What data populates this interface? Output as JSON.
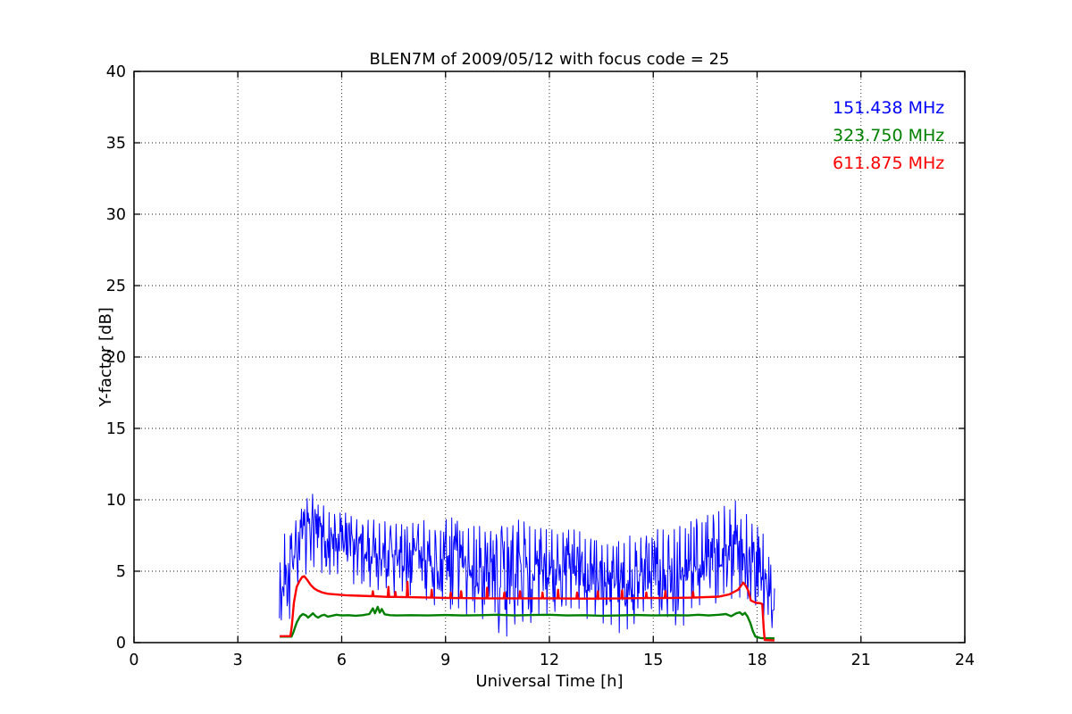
{
  "figure": {
    "background": "#ffffff"
  },
  "chart_data": {
    "type": "line",
    "title": "BLEN7M of 2009/05/12 with focus code = 25",
    "xlabel": "Universal Time [h]",
    "ylabel": "Y-factor [dB]",
    "xlim": [
      0,
      24
    ],
    "ylim": [
      0,
      40
    ],
    "xticks": [
      0,
      3,
      6,
      9,
      12,
      15,
      18,
      21,
      24
    ],
    "yticks": [
      0,
      5,
      10,
      15,
      20,
      25,
      30,
      35,
      40
    ],
    "grid": "dotted",
    "legend_position": "top-right",
    "series": [
      {
        "name": "151.438 MHz",
        "color": "#0000ff",
        "style": "noisy",
        "linewidth": 1.0,
        "envelope_format": "[t_start, t_end, min_dB, max_dB]",
        "envelope": [
          [
            4.2,
            4.35,
            1.4,
            6.5
          ],
          [
            4.35,
            4.55,
            1.4,
            7.8
          ],
          [
            4.55,
            4.75,
            4.0,
            8.8
          ],
          [
            4.75,
            5.0,
            4.8,
            9.6
          ],
          [
            5.0,
            5.3,
            5.0,
            10.4
          ],
          [
            5.3,
            5.6,
            4.8,
            9.8
          ],
          [
            5.6,
            5.9,
            4.5,
            9.3
          ],
          [
            5.9,
            6.2,
            4.2,
            9.2
          ],
          [
            6.2,
            6.6,
            4.0,
            9.0
          ],
          [
            6.6,
            7.0,
            3.8,
            8.6
          ],
          [
            7.0,
            7.5,
            3.5,
            8.5
          ],
          [
            7.5,
            8.0,
            3.2,
            8.4
          ],
          [
            8.0,
            8.5,
            3.0,
            8.6
          ],
          [
            8.5,
            9.0,
            2.6,
            8.0
          ],
          [
            9.0,
            9.5,
            2.2,
            9.0
          ],
          [
            9.5,
            10.0,
            1.6,
            8.2
          ],
          [
            10.0,
            10.5,
            1.5,
            8.0
          ],
          [
            10.5,
            11.0,
            0.4,
            8.2
          ],
          [
            11.0,
            11.5,
            1.2,
            8.6
          ],
          [
            11.5,
            12.0,
            1.6,
            8.0
          ],
          [
            12.0,
            12.5,
            1.8,
            8.0
          ],
          [
            12.5,
            13.0,
            2.0,
            8.2
          ],
          [
            13.0,
            13.5,
            1.6,
            7.5
          ],
          [
            13.5,
            14.0,
            1.2,
            7.2
          ],
          [
            14.0,
            14.5,
            0.4,
            7.5
          ],
          [
            14.5,
            15.0,
            2.0,
            7.6
          ],
          [
            15.0,
            15.5,
            1.6,
            8.0
          ],
          [
            15.5,
            16.0,
            1.2,
            8.4
          ],
          [
            16.0,
            16.5,
            2.4,
            8.8
          ],
          [
            16.5,
            17.0,
            2.2,
            9.2
          ],
          [
            17.0,
            17.3,
            3.0,
            9.6
          ],
          [
            17.3,
            17.5,
            3.5,
            10.0
          ],
          [
            17.5,
            17.8,
            3.0,
            9.0
          ],
          [
            17.8,
            18.1,
            2.4,
            8.4
          ],
          [
            18.1,
            18.3,
            1.6,
            7.6
          ],
          [
            18.3,
            18.45,
            0.8,
            6.0
          ],
          [
            18.45,
            18.52,
            0.4,
            4.0
          ]
        ]
      },
      {
        "name": "323.750 MHz",
        "color": "#008000",
        "style": "line",
        "linewidth": 2.4,
        "points_format": "[t_hours, dB]",
        "points": [
          [
            4.21,
            0.42
          ],
          [
            4.55,
            0.42
          ],
          [
            4.6,
            0.7
          ],
          [
            4.7,
            1.4
          ],
          [
            4.8,
            1.85
          ],
          [
            4.88,
            2.0
          ],
          [
            4.97,
            1.9
          ],
          [
            5.03,
            1.75
          ],
          [
            5.1,
            1.9
          ],
          [
            5.17,
            2.05
          ],
          [
            5.25,
            1.85
          ],
          [
            5.32,
            1.75
          ],
          [
            5.42,
            1.9
          ],
          [
            5.5,
            1.95
          ],
          [
            5.6,
            1.82
          ],
          [
            5.72,
            1.88
          ],
          [
            5.85,
            1.95
          ],
          [
            6.0,
            1.9
          ],
          [
            6.2,
            1.92
          ],
          [
            6.4,
            1.88
          ],
          [
            6.6,
            1.92
          ],
          [
            6.8,
            2.0
          ],
          [
            6.9,
            2.4
          ],
          [
            6.96,
            2.05
          ],
          [
            7.04,
            2.5
          ],
          [
            7.1,
            2.1
          ],
          [
            7.16,
            2.35
          ],
          [
            7.24,
            1.98
          ],
          [
            7.4,
            1.92
          ],
          [
            7.6,
            1.9
          ],
          [
            8.0,
            1.92
          ],
          [
            8.5,
            1.9
          ],
          [
            9.0,
            1.93
          ],
          [
            9.5,
            1.9
          ],
          [
            10.0,
            1.92
          ],
          [
            10.5,
            1.95
          ],
          [
            11.0,
            1.9
          ],
          [
            11.5,
            1.93
          ],
          [
            12.0,
            1.95
          ],
          [
            12.5,
            1.9
          ],
          [
            13.0,
            1.92
          ],
          [
            13.5,
            1.88
          ],
          [
            14.0,
            1.9
          ],
          [
            14.5,
            1.93
          ],
          [
            15.0,
            1.9
          ],
          [
            15.5,
            1.92
          ],
          [
            16.0,
            1.9
          ],
          [
            16.3,
            1.95
          ],
          [
            16.6,
            1.9
          ],
          [
            16.9,
            1.95
          ],
          [
            17.1,
            2.0
          ],
          [
            17.25,
            1.85
          ],
          [
            17.4,
            2.05
          ],
          [
            17.5,
            2.12
          ],
          [
            17.58,
            1.95
          ],
          [
            17.65,
            2.08
          ],
          [
            17.72,
            1.85
          ],
          [
            17.8,
            1.4
          ],
          [
            17.88,
            0.8
          ],
          [
            17.95,
            0.42
          ],
          [
            18.1,
            0.32
          ],
          [
            18.5,
            0.3
          ]
        ]
      },
      {
        "name": "611.875 MHz",
        "color": "#ff0000",
        "style": "line",
        "linewidth": 2.4,
        "points_format": "[t_hours, dB]",
        "points": [
          [
            4.21,
            0.45
          ],
          [
            4.52,
            0.45
          ],
          [
            4.56,
            1.2
          ],
          [
            4.62,
            2.8
          ],
          [
            4.7,
            3.9
          ],
          [
            4.78,
            4.3
          ],
          [
            4.86,
            4.6
          ],
          [
            4.92,
            4.65
          ],
          [
            5.0,
            4.4
          ],
          [
            5.1,
            4.05
          ],
          [
            5.2,
            3.8
          ],
          [
            5.3,
            3.65
          ],
          [
            5.45,
            3.5
          ],
          [
            5.6,
            3.42
          ],
          [
            5.8,
            3.38
          ],
          [
            6.1,
            3.32
          ],
          [
            6.5,
            3.28
          ],
          [
            6.88,
            3.25
          ],
          [
            6.9,
            3.6
          ],
          [
            6.92,
            3.25
          ],
          [
            7.33,
            3.2
          ],
          [
            7.35,
            3.9
          ],
          [
            7.37,
            3.2
          ],
          [
            7.53,
            3.2
          ],
          [
            7.55,
            3.55
          ],
          [
            7.57,
            3.2
          ],
          [
            7.88,
            3.18
          ],
          [
            7.9,
            4.25
          ],
          [
            7.92,
            3.18
          ],
          [
            8.58,
            3.15
          ],
          [
            8.6,
            3.7
          ],
          [
            8.62,
            3.15
          ],
          [
            9.13,
            3.12
          ],
          [
            9.15,
            3.5
          ],
          [
            9.17,
            3.12
          ],
          [
            9.43,
            3.12
          ],
          [
            9.45,
            3.6
          ],
          [
            9.47,
            3.12
          ],
          [
            10.18,
            3.1
          ],
          [
            10.2,
            3.85
          ],
          [
            10.22,
            3.1
          ],
          [
            10.68,
            3.1
          ],
          [
            10.7,
            3.5
          ],
          [
            10.72,
            3.1
          ],
          [
            11.13,
            3.1
          ],
          [
            11.15,
            3.6
          ],
          [
            11.17,
            3.1
          ],
          [
            11.78,
            3.1
          ],
          [
            11.8,
            3.5
          ],
          [
            11.82,
            3.1
          ],
          [
            12.23,
            3.1
          ],
          [
            12.25,
            3.7
          ],
          [
            12.27,
            3.1
          ],
          [
            12.78,
            3.08
          ],
          [
            12.8,
            3.5
          ],
          [
            12.82,
            3.08
          ],
          [
            13.38,
            3.08
          ],
          [
            13.4,
            3.6
          ],
          [
            13.42,
            3.08
          ],
          [
            14.08,
            3.1
          ],
          [
            14.1,
            3.65
          ],
          [
            14.12,
            3.1
          ],
          [
            14.78,
            3.12
          ],
          [
            14.8,
            3.5
          ],
          [
            14.82,
            3.12
          ],
          [
            15.33,
            3.12
          ],
          [
            15.35,
            3.6
          ],
          [
            15.37,
            3.12
          ],
          [
            16.13,
            3.15
          ],
          [
            16.15,
            3.55
          ],
          [
            16.17,
            3.15
          ],
          [
            16.5,
            3.18
          ],
          [
            16.9,
            3.22
          ],
          [
            17.2,
            3.38
          ],
          [
            17.45,
            3.7
          ],
          [
            17.6,
            4.2
          ],
          [
            17.68,
            3.95
          ],
          [
            17.75,
            3.6
          ],
          [
            17.82,
            2.95
          ],
          [
            17.95,
            2.8
          ],
          [
            18.1,
            2.75
          ],
          [
            18.15,
            2.7
          ],
          [
            18.19,
            1.0
          ],
          [
            18.22,
            0.18
          ],
          [
            18.5,
            0.15
          ]
        ]
      }
    ]
  }
}
